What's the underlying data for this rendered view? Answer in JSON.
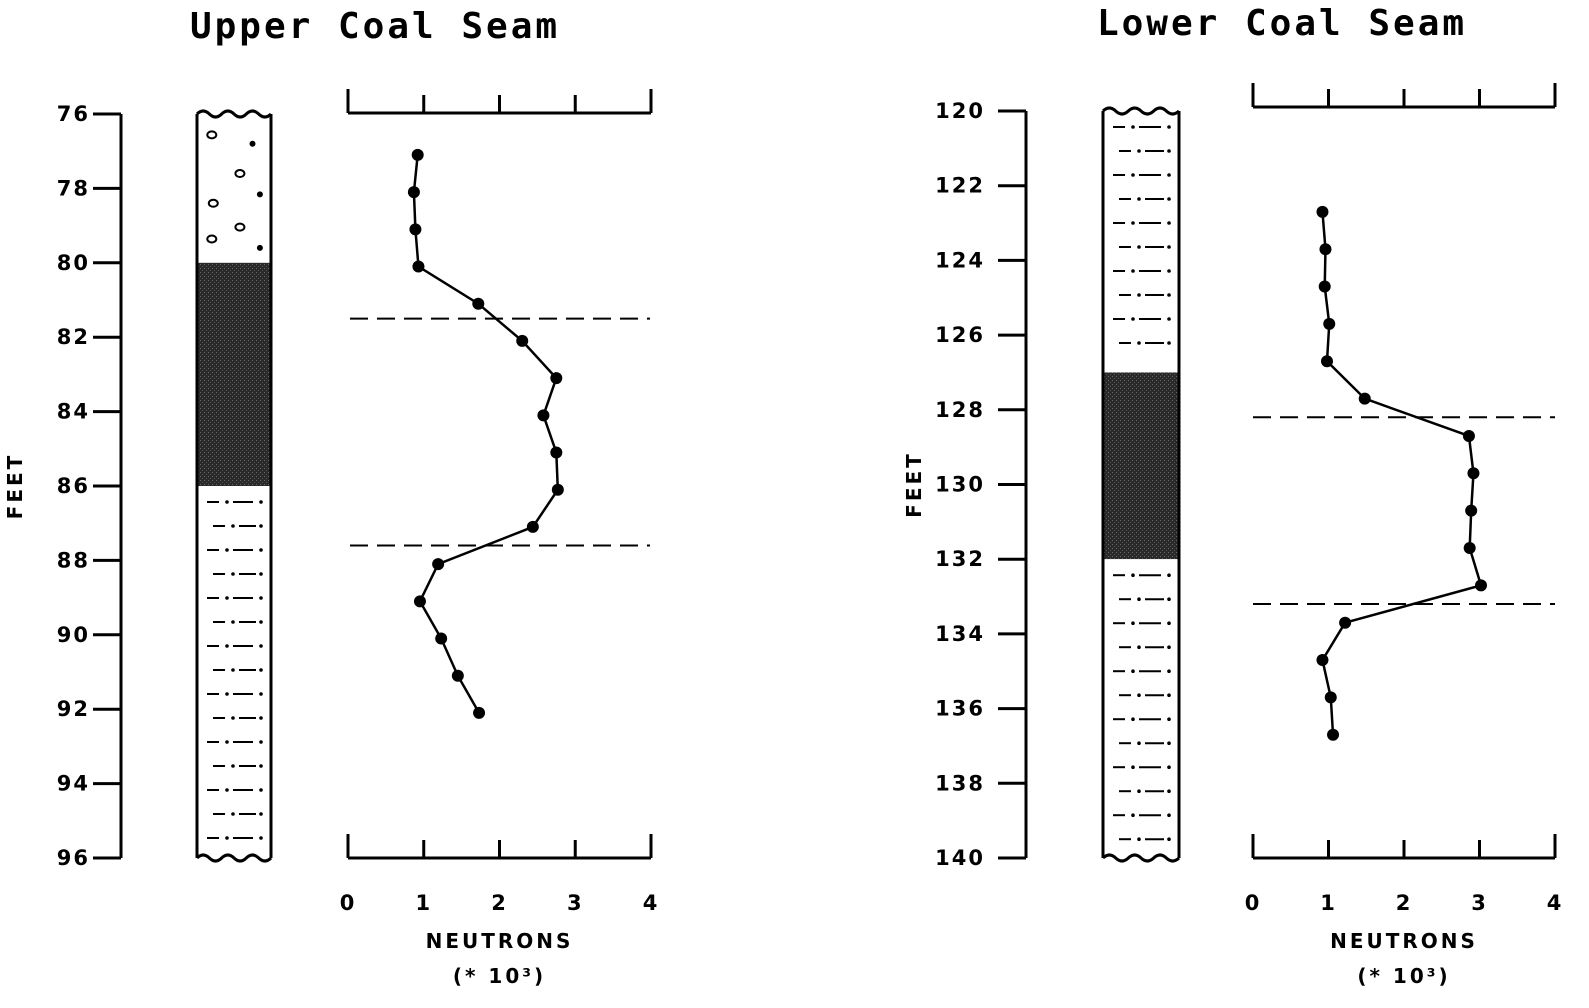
{
  "chart_data": [
    {
      "type": "line",
      "title": "Upper Coal Seam",
      "xlabel": "NEUTRONS",
      "xlabel_unit": "(* 10³)",
      "ylabel": "FEET",
      "xlim": [
        0,
        4
      ],
      "ylim": [
        76,
        96
      ],
      "y_inverted": true,
      "x_ticks": [
        "0",
        "1",
        "2",
        "3",
        "4"
      ],
      "y_ticks": [
        "76",
        "78",
        "80",
        "82",
        "84",
        "86",
        "88",
        "90",
        "92",
        "94",
        "96"
      ],
      "series": [
        {
          "x": [
            0.92,
            0.87,
            0.89,
            0.93,
            1.72,
            2.3,
            2.75,
            2.58,
            2.75,
            2.77,
            2.44,
            1.19,
            0.95,
            1.23,
            1.45,
            1.73
          ],
          "y": [
            77.1,
            78.1,
            79.1,
            80.1,
            81.1,
            82.1,
            83.1,
            84.1,
            85.1,
            86.1,
            87.1,
            88.1,
            89.1,
            90.1,
            91.1,
            92.1
          ]
        }
      ],
      "dashed_lines_depth": [
        81.5,
        87.6
      ],
      "lithology": [
        {
          "from": 76,
          "to": 80,
          "pattern": "conglomerate"
        },
        {
          "from": 80,
          "to": 86,
          "pattern": "coal"
        },
        {
          "from": 86,
          "to": 96,
          "pattern": "shale"
        }
      ]
    },
    {
      "type": "line",
      "title": "Lower Coal Seam",
      "xlabel": "NEUTRONS",
      "xlabel_unit": "(* 10³)",
      "ylabel": "FEET",
      "xlim": [
        0,
        4
      ],
      "ylim": [
        120,
        140
      ],
      "y_inverted": true,
      "x_ticks": [
        "0",
        "1",
        "2",
        "3",
        "4"
      ],
      "y_ticks": [
        "120",
        "122",
        "124",
        "126",
        "128",
        "130",
        "132",
        "134",
        "136",
        "138",
        "140"
      ],
      "series": [
        {
          "x": [
            0.92,
            0.96,
            0.95,
            1.01,
            0.98,
            1.48,
            2.86,
            2.92,
            2.89,
            2.87,
            3.02,
            1.22,
            0.92,
            1.03,
            1.06
          ],
          "y": [
            122.7,
            123.7,
            124.7,
            125.7,
            126.7,
            127.7,
            128.7,
            129.7,
            130.7,
            131.7,
            132.7,
            133.7,
            134.7,
            135.7,
            136.7
          ]
        }
      ],
      "dashed_lines_depth": [
        128.2,
        133.2
      ],
      "lithology": [
        {
          "from": 120,
          "to": 127,
          "pattern": "siltstone"
        },
        {
          "from": 127,
          "to": 132,
          "pattern": "coal"
        },
        {
          "from": 132,
          "to": 140,
          "pattern": "siltstone"
        }
      ]
    }
  ]
}
